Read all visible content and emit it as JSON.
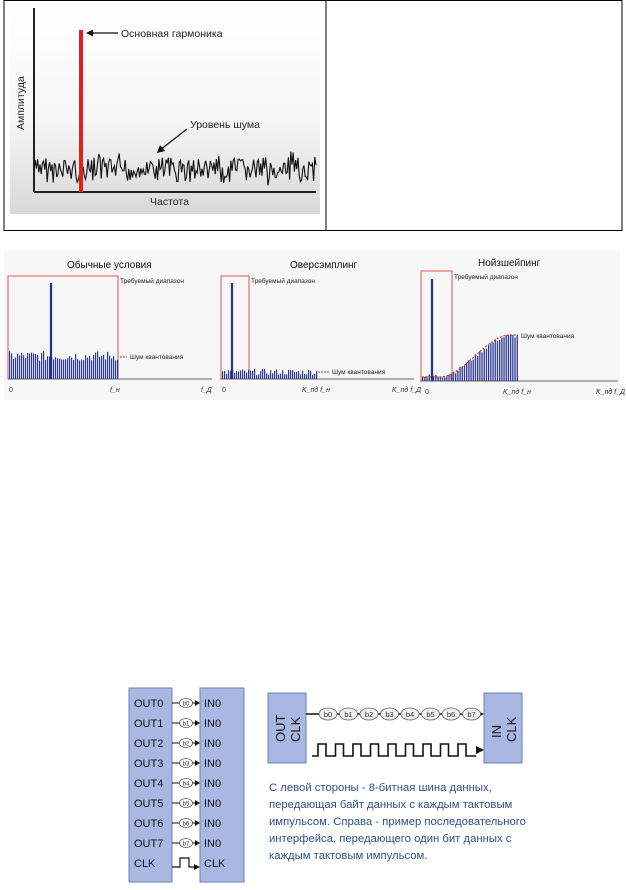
{
  "figure1": {
    "peak_label": "Основная гармоника",
    "noise_label": "Уровень шума",
    "x_axis_label": "Частота",
    "y_axis_label": "Амплитуда"
  },
  "figure2": {
    "panels": [
      {
        "title": "Обычные условия",
        "range_label": "Требуемый диапазон",
        "noise_label": "Шум квантования",
        "ticks": [
          "0",
          "f_н",
          "f_Д"
        ]
      },
      {
        "title": "Оверсэмплинг",
        "range_label": "Требуемый диапазон",
        "noise_label": "Шум квантования",
        "ticks": [
          "0",
          "K_пд f_н",
          "K_пд f_Д"
        ]
      },
      {
        "title": "Нойзшейпинг",
        "range_label": "Требуемый диапазон",
        "noise_label": "Шум квантования",
        "ticks": [
          "0",
          "K_пд f_н",
          "K_пд f_Д"
        ]
      }
    ]
  },
  "figure3": {
    "out_pins": [
      "OUT0",
      "OUT1",
      "OUT2",
      "OUT3",
      "OUT4",
      "OUT5",
      "OUT6",
      "OUT7",
      "CLK"
    ],
    "in_pins": [
      "IN0",
      "IN0",
      "IN0",
      "IN0",
      "IN0",
      "IN0",
      "IN0",
      "IN0",
      "CLK"
    ],
    "bits": [
      "b0",
      "b1",
      "b2",
      "b3",
      "b4",
      "b5",
      "b6",
      "b7"
    ],
    "serial_out_label": [
      "OUT",
      "CLK"
    ],
    "serial_in_label": [
      "IN",
      "CLK"
    ],
    "caption_lines": [
      "С левой стороны - 8-битная шина данных,",
      "передающая байт данных с каждым тактовым",
      "импульсом. Справа - пример последовательного",
      "интерфейса, передающего один бит данных с",
      "каждым тактовым импульсом."
    ],
    "colors": {
      "block": "#a9b8e3",
      "caption": "#2e4f8f"
    }
  }
}
